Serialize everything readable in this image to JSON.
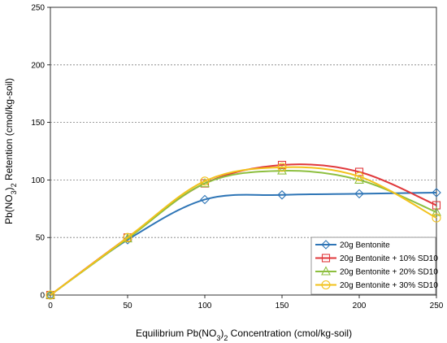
{
  "chart_data": {
    "type": "line",
    "xlabel_main": "Equilibrium  Pb(NO",
    "xlabel_sub": "3",
    "xlabel_close": ")",
    "xlabel_sub2": "2",
    "xlabel_rest": "  Concentration (cmol/kg-soil)",
    "ylabel_main": "Pb(NO",
    "ylabel_sub": "3",
    "ylabel_close": ")",
    "ylabel_sub2": "2",
    "ylabel_rest": " Retention (cmol/kg-soil)",
    "xlim": [
      0,
      250
    ],
    "ylim": [
      0,
      250
    ],
    "x_ticks": [
      "0",
      "50",
      "100",
      "150",
      "200",
      "250"
    ],
    "y_ticks": [
      "0",
      "50",
      "100",
      "150",
      "200",
      "250"
    ],
    "grid": "horizontal-dotted",
    "legend_position": "bottom-right",
    "x": [
      0,
      50,
      100,
      150,
      200,
      250
    ],
    "series": [
      {
        "name": "20g Bentonite",
        "values": [
          0,
          48,
          83,
          87,
          88,
          89
        ],
        "color": "#2E75B6",
        "marker": "diamond"
      },
      {
        "name": "20g Bentonite + 10% SD10",
        "values": [
          0,
          50,
          97,
          113,
          107,
          78
        ],
        "color": "#E0383B",
        "marker": "square"
      },
      {
        "name": "20g Bentonite + 20% SD10",
        "values": [
          0,
          49,
          97,
          108,
          100,
          72
        ],
        "color": "#8DBF3F",
        "marker": "triangle"
      },
      {
        "name": "20g Bentonite + 30% SD10",
        "values": [
          0,
          50,
          99,
          111,
          103,
          67
        ],
        "color": "#F2C21B",
        "marker": "circle"
      }
    ]
  }
}
